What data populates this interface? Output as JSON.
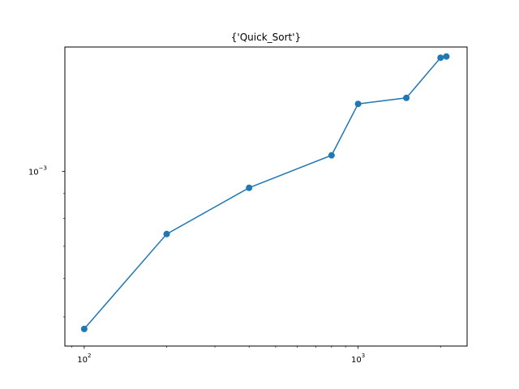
{
  "chart_data": {
    "type": "line",
    "title": "{'Quick_Sort'}",
    "xlabel": "",
    "ylabel": "",
    "x_scale": "log",
    "y_scale": "log",
    "xlim": [
      85,
      2500
    ],
    "ylim": [
      0.000435,
      0.00181
    ],
    "grid": false,
    "color": "#1f77b4",
    "x_ticks": [
      {
        "value": 100,
        "base": "10",
        "exp": "2"
      },
      {
        "value": 1000,
        "base": "10",
        "exp": "3"
      }
    ],
    "y_ticks": [
      {
        "value": 0.001,
        "base": "10",
        "exp": "−3"
      }
    ],
    "series": [
      {
        "x": [
          100,
          200,
          400,
          800,
          1000,
          1500,
          2000,
          2100
        ],
        "y": [
          0.000472,
          0.000742,
          0.000925,
          0.00108,
          0.00138,
          0.00142,
          0.00172,
          0.00173
        ]
      }
    ]
  }
}
